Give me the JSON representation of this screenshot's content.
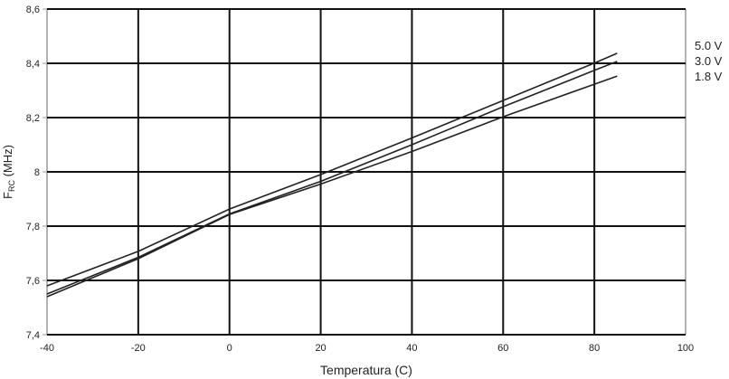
{
  "chart_data": {
    "type": "line",
    "title": "",
    "xlabel": "Temperatura (C)",
    "ylabel_main": "F",
    "ylabel_sub": "RC",
    "ylabel_unit": " (MHz)",
    "xlim": [
      -40,
      100
    ],
    "ylim": [
      7.4,
      8.6
    ],
    "xticks": [
      -40,
      -20,
      0,
      20,
      40,
      60,
      80,
      100
    ],
    "xtick_labels": [
      "-40",
      "-20",
      "0",
      "20",
      "40",
      "60",
      "80",
      "100"
    ],
    "yticks": [
      7.4,
      7.6,
      7.8,
      8.0,
      8.2,
      8.4,
      8.6
    ],
    "ytick_labels": [
      "7,4",
      "7,6",
      "7,8",
      "8",
      "8,2",
      "8,4",
      "8,6"
    ],
    "grid": true,
    "legend_placement": "right",
    "line_color": "#222222",
    "x": [
      -40,
      -20,
      0,
      20,
      40,
      60,
      80,
      85
    ],
    "series": [
      {
        "name": "5.0 V",
        "values": [
          7.58,
          7.707,
          7.863,
          7.99,
          8.125,
          8.263,
          8.401,
          8.437
        ]
      },
      {
        "name": "3.0 V",
        "values": [
          7.55,
          7.685,
          7.845,
          7.965,
          8.1,
          8.24,
          8.374,
          8.407
        ]
      },
      {
        "name": "1.8 V",
        "values": [
          7.54,
          7.68,
          7.843,
          7.955,
          8.075,
          8.203,
          8.323,
          8.353
        ]
      }
    ]
  }
}
